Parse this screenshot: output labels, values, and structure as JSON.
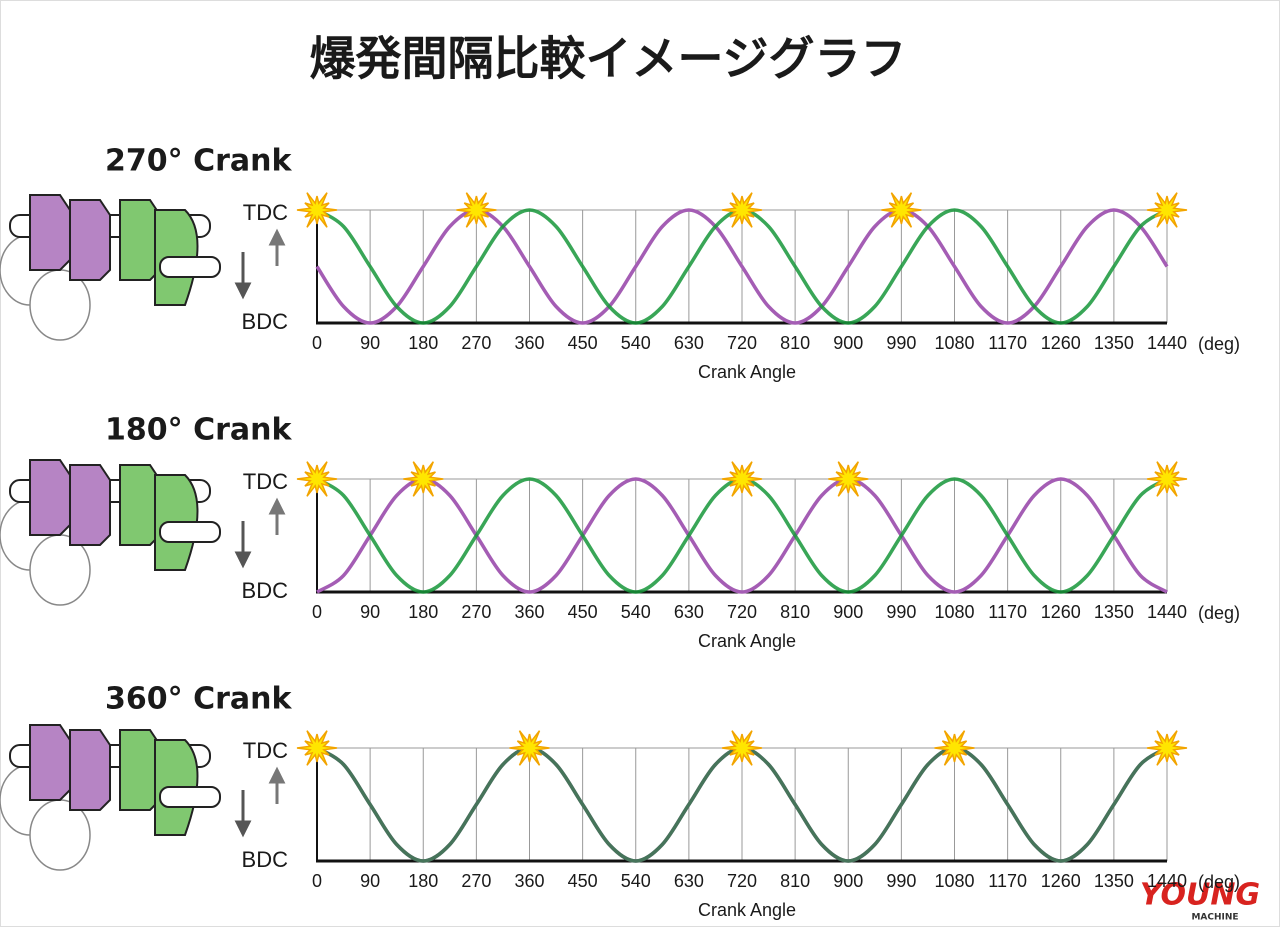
{
  "header": {
    "title": "爆発間隔比較イメージグラフ"
  },
  "logo": {
    "name": "YOUNG",
    "sub": "MACHINE"
  },
  "chart_data": [
    {
      "type": "line",
      "title": "270° Crank",
      "x": [
        0,
        45,
        90,
        135,
        180,
        225,
        270,
        315,
        360,
        405,
        450,
        495,
        540,
        585,
        630,
        675,
        720,
        765,
        810,
        855,
        900,
        945,
        990,
        1035,
        1080,
        1125,
        1170,
        1215,
        1260,
        1305,
        1350,
        1395,
        1440
      ],
      "series": [
        {
          "color": "#a45db4",
          "values": [
            0.5,
            0.146,
            0,
            0.146,
            0.5,
            0.854,
            1,
            0.854,
            0.5,
            0.146,
            0,
            0.146,
            0.5,
            0.854,
            1,
            0.854,
            0.5,
            0.146,
            0,
            0.146,
            0.5,
            0.854,
            1,
            0.854,
            0.5,
            0.146,
            0,
            0.146,
            0.5,
            0.854,
            1,
            0.854,
            0.5
          ]
        },
        {
          "color": "#16963a",
          "values": [
            1,
            0.854,
            0.5,
            0.146,
            0,
            0.146,
            0.5,
            0.854,
            1,
            0.854,
            0.5,
            0.146,
            0,
            0.146,
            0.5,
            0.854,
            1,
            0.854,
            0.5,
            0.146,
            0,
            0.146,
            0.5,
            0.854,
            1,
            0.854,
            0.5,
            0.146,
            0,
            0.146,
            0.5,
            0.854,
            1
          ]
        }
      ],
      "ignitions": [
        0,
        270,
        720,
        990,
        1440
      ],
      "xlim": [
        0,
        1440
      ],
      "xticks": [
        0,
        90,
        180,
        270,
        360,
        450,
        540,
        630,
        720,
        810,
        900,
        990,
        1080,
        1170,
        1260,
        1350,
        1440
      ],
      "x_unit": "(deg)",
      "xlabel": "Crank Angle",
      "ylim": [
        0,
        1
      ],
      "yticks": [
        {
          "value": 1,
          "label": "TDC"
        },
        {
          "value": 0,
          "label": "BDC"
        }
      ],
      "grid": true
    },
    {
      "type": "line",
      "title": "180° Crank",
      "x": [
        0,
        45,
        90,
        135,
        180,
        225,
        270,
        315,
        360,
        405,
        450,
        495,
        540,
        585,
        630,
        675,
        720,
        765,
        810,
        855,
        900,
        945,
        990,
        1035,
        1080,
        1125,
        1170,
        1215,
        1260,
        1305,
        1350,
        1395,
        1440
      ],
      "series": [
        {
          "color": "#a45db4",
          "values": [
            0,
            0.146,
            0.5,
            0.854,
            1,
            0.854,
            0.5,
            0.146,
            0,
            0.146,
            0.5,
            0.854,
            1,
            0.854,
            0.5,
            0.146,
            0,
            0.146,
            0.5,
            0.854,
            1,
            0.854,
            0.5,
            0.146,
            0,
            0.146,
            0.5,
            0.854,
            1,
            0.854,
            0.5,
            0.146,
            0
          ]
        },
        {
          "color": "#16963a",
          "values": [
            1,
            0.854,
            0.5,
            0.146,
            0,
            0.146,
            0.5,
            0.854,
            1,
            0.854,
            0.5,
            0.146,
            0,
            0.146,
            0.5,
            0.854,
            1,
            0.854,
            0.5,
            0.146,
            0,
            0.146,
            0.5,
            0.854,
            1,
            0.854,
            0.5,
            0.146,
            0,
            0.146,
            0.5,
            0.854,
            1
          ]
        }
      ],
      "ignitions": [
        0,
        180,
        720,
        900,
        1440
      ],
      "xlim": [
        0,
        1440
      ],
      "xticks": [
        0,
        90,
        180,
        270,
        360,
        450,
        540,
        630,
        720,
        810,
        900,
        990,
        1080,
        1170,
        1260,
        1350,
        1440
      ],
      "x_unit": "(deg)",
      "xlabel": "Crank Angle",
      "ylim": [
        0,
        1
      ],
      "yticks": [
        {
          "value": 1,
          "label": "TDC"
        },
        {
          "value": 0,
          "label": "BDC"
        }
      ],
      "grid": true
    },
    {
      "type": "line",
      "title": "360° Crank",
      "x": [
        0,
        45,
        90,
        135,
        180,
        225,
        270,
        315,
        360,
        405,
        450,
        495,
        540,
        585,
        630,
        675,
        720,
        765,
        810,
        855,
        900,
        945,
        990,
        1035,
        1080,
        1125,
        1170,
        1215,
        1260,
        1305,
        1350,
        1395,
        1440
      ],
      "series": [
        {
          "color": "#6a4f7a",
          "values": [
            1,
            0.854,
            0.5,
            0.146,
            0,
            0.146,
            0.5,
            0.854,
            1,
            0.854,
            0.5,
            0.146,
            0,
            0.146,
            0.5,
            0.854,
            1,
            0.854,
            0.5,
            0.146,
            0,
            0.146,
            0.5,
            0.854,
            1,
            0.854,
            0.5,
            0.146,
            0,
            0.146,
            0.5,
            0.854,
            1
          ]
        },
        {
          "color": "#3f7a55",
          "values": [
            1,
            0.854,
            0.5,
            0.146,
            0,
            0.146,
            0.5,
            0.854,
            1,
            0.854,
            0.5,
            0.146,
            0,
            0.146,
            0.5,
            0.854,
            1,
            0.854,
            0.5,
            0.146,
            0,
            0.146,
            0.5,
            0.854,
            1,
            0.854,
            0.5,
            0.146,
            0,
            0.146,
            0.5,
            0.854,
            1
          ]
        }
      ],
      "ignitions": [
        0,
        360,
        720,
        1080,
        1440
      ],
      "xlim": [
        0,
        1440
      ],
      "xticks": [
        0,
        90,
        180,
        270,
        360,
        450,
        540,
        630,
        720,
        810,
        900,
        990,
        1080,
        1170,
        1260,
        1350,
        1440
      ],
      "x_unit": "(deg)",
      "xlabel": "Crank Angle",
      "ylim": [
        0,
        1
      ],
      "yticks": [
        {
          "value": 1,
          "label": "TDC"
        },
        {
          "value": 0,
          "label": "BDC"
        }
      ],
      "grid": true
    }
  ]
}
